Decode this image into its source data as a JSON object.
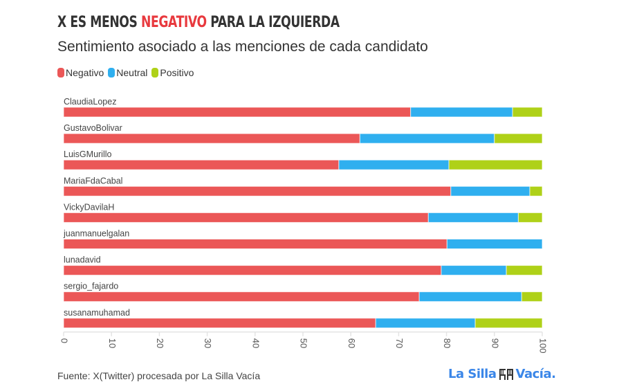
{
  "header": {
    "title_pre": "X ES MENOS ",
    "title_highlight": "NEGATIVO",
    "title_post": " PARA LA IZQUIERDA",
    "subtitle": "Sentimiento asociado a las menciones de cada candidato"
  },
  "legend": [
    {
      "label": "Negativo",
      "color": "#EB5757"
    },
    {
      "label": "Neutral",
      "color": "#2FAFEF"
    },
    {
      "label": "Positivo",
      "color": "#AFD118"
    }
  ],
  "footer": {
    "source": "Fuente: X(Twitter) procesada por La Silla Vacía",
    "logo_left": "La Silla",
    "logo_right": "Vacía."
  },
  "chart_data": {
    "type": "bar",
    "orientation": "horizontal",
    "stacked": true,
    "title": "X ES MENOS NEGATIVO PARA LA IZQUIERDA",
    "subtitle": "Sentimiento asociado a las menciones de cada candidato",
    "xlabel": "",
    "ylabel": "",
    "xlim": [
      0,
      100
    ],
    "xticks": [
      0,
      10,
      20,
      30,
      40,
      50,
      60,
      70,
      80,
      90,
      100
    ],
    "legend_position": "top-left",
    "grid": false,
    "categories": [
      "ClaudiaLopez",
      "GustavoBolivar",
      "LuisGMurillo",
      "MariaFdaCabal",
      "VickyDavilaH",
      "juanmanuelgalan",
      "lunadavid",
      "sergio_fajardo",
      "susanamuhamad"
    ],
    "series": [
      {
        "name": "Negativo",
        "color": "#EB5757",
        "values": [
          72.5,
          61.9,
          57.5,
          80.9,
          76.2,
          80.1,
          78.9,
          74.3,
          65.2
        ]
      },
      {
        "name": "Neutral",
        "color": "#2FAFEF",
        "values": [
          21.3,
          28.1,
          23.0,
          16.5,
          18.8,
          19.9,
          13.6,
          21.4,
          20.8
        ]
      },
      {
        "name": "Positivo",
        "color": "#AFD118",
        "values": [
          6.2,
          10.0,
          19.5,
          2.6,
          5.0,
          0.0,
          7.5,
          4.3,
          14.0
        ]
      }
    ]
  }
}
